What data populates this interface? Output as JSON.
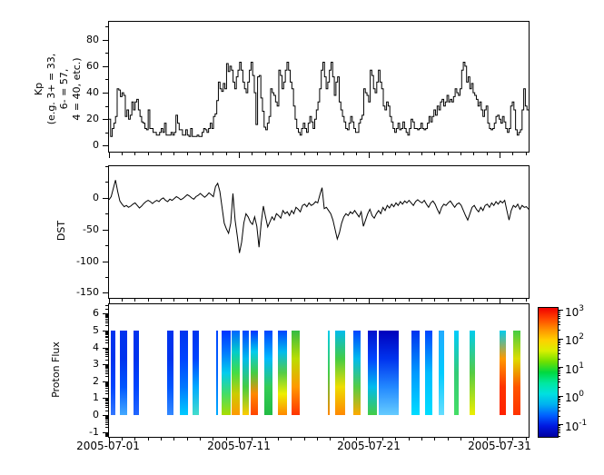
{
  "figure": {
    "background": "#ffffff",
    "line_color": "#000000"
  },
  "x_axis": {
    "tick_labels": [
      "2005-07-01",
      "2005-07-11",
      "2005-07-21",
      "2005-07-31"
    ],
    "tick_days": [
      0,
      10,
      20,
      30
    ],
    "minor_every_days": 1,
    "total_days": 32.2
  },
  "chart_data": [
    {
      "id": "kp",
      "type": "line",
      "line_style": "step",
      "ylabel_lines": [
        "Kp",
        "(e.g. 3+ = 33,",
        "6- = 57,",
        "4 = 40, etc.)"
      ],
      "ylim": [
        -4.5,
        93.5
      ],
      "yticks": [
        0,
        20,
        40,
        60,
        80
      ],
      "yminor_step": 10,
      "values_per_day": 8,
      "values": [
        20,
        7,
        13,
        17,
        22,
        43,
        42,
        37,
        40,
        38,
        22,
        27,
        20,
        23,
        33,
        27,
        33,
        35,
        27,
        22,
        18,
        17,
        13,
        12,
        27,
        13,
        13,
        10,
        10,
        8,
        8,
        10,
        13,
        10,
        17,
        8,
        8,
        8,
        10,
        8,
        10,
        23,
        17,
        12,
        12,
        8,
        8,
        12,
        8,
        7,
        13,
        7,
        7,
        7,
        8,
        7,
        7,
        10,
        13,
        12,
        10,
        13,
        17,
        13,
        22,
        24,
        34,
        48,
        43,
        41,
        47,
        43,
        62,
        56,
        60,
        57,
        48,
        43,
        52,
        57,
        63,
        57,
        48,
        43,
        40,
        48,
        57,
        63,
        53,
        40,
        16,
        52,
        53,
        36,
        26,
        14,
        12,
        17,
        22,
        43,
        40,
        38,
        33,
        30,
        57,
        53,
        43,
        48,
        57,
        63,
        57,
        48,
        43,
        30,
        20,
        13,
        10,
        8,
        13,
        17,
        13,
        10,
        17,
        22,
        18,
        13,
        20,
        27,
        33,
        43,
        57,
        63,
        52,
        43,
        48,
        57,
        63,
        52,
        38,
        48,
        52,
        33,
        27,
        22,
        18,
        13,
        12,
        17,
        22,
        18,
        13,
        10,
        10,
        17,
        20,
        23,
        43,
        40,
        38,
        33,
        57,
        53,
        43,
        40,
        48,
        57,
        48,
        43,
        30,
        27,
        33,
        30,
        22,
        18,
        13,
        10,
        13,
        17,
        12,
        13,
        18,
        13,
        10,
        8,
        13,
        20,
        18,
        13,
        13,
        12,
        13,
        17,
        13,
        12,
        13,
        17,
        22,
        18,
        22,
        27,
        23,
        30,
        27,
        33,
        35,
        30,
        33,
        38,
        33,
        35,
        33,
        37,
        43,
        40,
        38,
        43,
        57,
        63,
        60,
        48,
        52,
        43,
        47,
        40,
        38,
        35,
        30,
        33,
        27,
        22,
        27,
        30,
        17,
        13,
        12,
        13,
        17,
        22,
        23,
        20,
        17,
        22,
        18,
        13,
        10,
        13,
        30,
        33,
        27,
        12,
        8,
        10,
        12,
        27,
        43,
        30,
        27
      ]
    },
    {
      "id": "dst",
      "type": "line",
      "line_style": "linear",
      "ylabel": "DST",
      "ylim": [
        -158,
        50
      ],
      "yticks": [
        0,
        -50,
        -100,
        -150
      ],
      "yminor_step": 25,
      "values_per_day": 6,
      "values": [
        -3,
        2,
        15,
        28,
        10,
        -5,
        -10,
        -14,
        -12,
        -15,
        -13,
        -10,
        -8,
        -12,
        -16,
        -13,
        -9,
        -6,
        -4,
        -6,
        -9,
        -6,
        -4,
        -6,
        -2,
        0,
        -4,
        -6,
        -2,
        -4,
        -1,
        2,
        0,
        -3,
        -1,
        2,
        5,
        3,
        0,
        -2,
        2,
        4,
        7,
        4,
        1,
        4,
        8,
        5,
        2,
        18,
        23,
        10,
        -15,
        -40,
        -49,
        -56,
        -40,
        7,
        -35,
        -60,
        -87,
        -70,
        -40,
        -25,
        -30,
        -38,
        -42,
        -30,
        -45,
        -78,
        -40,
        -13,
        -30,
        -46,
        -38,
        -30,
        -35,
        -25,
        -28,
        -32,
        -20,
        -25,
        -22,
        -28,
        -20,
        -25,
        -15,
        -18,
        -22,
        -12,
        -10,
        -14,
        -8,
        -12,
        -10,
        -6,
        -8,
        5,
        16,
        -17,
        -15,
        -20,
        -25,
        -35,
        -50,
        -65,
        -55,
        -40,
        -30,
        -25,
        -28,
        -22,
        -25,
        -20,
        -25,
        -30,
        -22,
        -45,
        -35,
        -25,
        -18,
        -28,
        -32,
        -25,
        -20,
        -25,
        -15,
        -20,
        -12,
        -16,
        -10,
        -14,
        -8,
        -12,
        -6,
        -10,
        -5,
        -8,
        -4,
        -8,
        -12,
        -6,
        -3,
        -6,
        -8,
        -4,
        -10,
        -15,
        -8,
        -5,
        -10,
        -18,
        -25,
        -15,
        -10,
        -12,
        -8,
        -5,
        -10,
        -15,
        -10,
        -8,
        -12,
        -20,
        -28,
        -35,
        -25,
        -15,
        -12,
        -18,
        -22,
        -15,
        -20,
        -12,
        -10,
        -15,
        -8,
        -12,
        -6,
        -10,
        -5,
        -8,
        -4,
        -20,
        -35,
        -20,
        -12,
        -15,
        -10,
        -18,
        -12,
        -15,
        -14,
        -18
      ]
    },
    {
      "id": "proton",
      "type": "heatmap",
      "ylabel": "Proton Flux",
      "ylim": [
        -1.28,
        6.55
      ],
      "yticks": [
        -1,
        0,
        1,
        2,
        3,
        4,
        5,
        6
      ],
      "yminor_style": "log-decades",
      "stripe_y_range": [
        0,
        5
      ],
      "value_range": [
        "1e-1",
        "1e3"
      ],
      "stripes": [
        {
          "start_day": 0.15,
          "end_day": 0.5,
          "colors": [
            "#0033ee",
            "#0033ee",
            "#0044ff",
            "#3377ff"
          ]
        },
        {
          "start_day": 0.84,
          "end_day": 1.39,
          "colors": [
            "#0033ee",
            "#0033ee",
            "#0055ff",
            "#44aaff"
          ]
        },
        {
          "start_day": 1.88,
          "end_day": 2.3,
          "colors": [
            "#0033ee",
            "#0033ee",
            "#0044ff",
            "#2266ff"
          ]
        },
        {
          "start_day": 4.45,
          "end_day": 4.93,
          "colors": [
            "#0033ee",
            "#0033ee",
            "#0055ff",
            "#3388ff"
          ]
        },
        {
          "start_day": 5.42,
          "end_day": 6.05,
          "colors": [
            "#0033ee",
            "#0044ff",
            "#0077ff",
            "#00ccff"
          ]
        },
        {
          "start_day": 6.4,
          "end_day": 6.88,
          "colors": [
            "#0033ee",
            "#0044ff",
            "#00aaff",
            "#44ddcc"
          ]
        },
        {
          "start_day": 8.2,
          "end_day": 8.34,
          "colors": [
            "#0044ff",
            "#0066ff",
            "#00aaff"
          ]
        },
        {
          "start_day": 8.61,
          "end_day": 9.31,
          "colors": [
            "#0033ff",
            "#0077ff",
            "#00ccee",
            "#44dd66",
            "#aadd00"
          ]
        },
        {
          "start_day": 9.38,
          "end_day": 10.07,
          "colors": [
            "#0066ff",
            "#00cccc",
            "#44dd44",
            "#cccc00",
            "#ff9900"
          ]
        },
        {
          "start_day": 10.21,
          "end_day": 10.76,
          "colors": [
            "#0044ff",
            "#00bbee",
            "#44cc44",
            "#ffcc00"
          ]
        },
        {
          "start_day": 10.9,
          "end_day": 11.46,
          "colors": [
            "#0033ff",
            "#00ccee",
            "#44cc44",
            "#ff8800",
            "#ff4400"
          ]
        },
        {
          "start_day": 11.94,
          "end_day": 12.57,
          "colors": [
            "#0044ff",
            "#00bbff",
            "#33cc55",
            "#22bb44"
          ]
        },
        {
          "start_day": 12.99,
          "end_day": 13.68,
          "colors": [
            "#0044ff",
            "#00bbee",
            "#55cc44",
            "#eeee00",
            "#ff8800"
          ]
        },
        {
          "start_day": 14.03,
          "end_day": 14.65,
          "colors": [
            "#33bb44",
            "#bbdd00",
            "#ff9900",
            "#ff3300"
          ]
        },
        {
          "start_day": 16.81,
          "end_day": 16.95,
          "colors": [
            "#00ccee",
            "#44cc44",
            "#ff8800"
          ]
        },
        {
          "start_day": 17.36,
          "end_day": 18.13,
          "colors": [
            "#00bbee",
            "#44cc44",
            "#eedd00",
            "#ff8800"
          ]
        },
        {
          "start_day": 18.75,
          "end_day": 19.31,
          "colors": [
            "#0044ff",
            "#00bbee",
            "#55cc44",
            "#ffaa00"
          ]
        },
        {
          "start_day": 19.86,
          "end_day": 20.56,
          "colors": [
            "#0011cc",
            "#0044ff",
            "#00bbee",
            "#44cc44"
          ]
        },
        {
          "start_day": 20.69,
          "end_day": 22.22,
          "colors": [
            "#0000bb",
            "#0033ee",
            "#2288ff",
            "#66ccff"
          ]
        },
        {
          "start_day": 23.19,
          "end_day": 23.82,
          "colors": [
            "#0033ee",
            "#0099ff",
            "#00ddff"
          ]
        },
        {
          "start_day": 24.24,
          "end_day": 24.79,
          "colors": [
            "#0044ff",
            "#00bbff",
            "#00ddff"
          ]
        },
        {
          "start_day": 25.28,
          "end_day": 25.69,
          "colors": [
            "#22aaff",
            "#00ccff",
            "#66ddff"
          ]
        },
        {
          "start_day": 26.46,
          "end_day": 26.81,
          "colors": [
            "#00ccff",
            "#33cc77",
            "#44dd66"
          ]
        },
        {
          "start_day": 27.64,
          "end_day": 28.06,
          "colors": [
            "#00ccee",
            "#55cc44",
            "#eeee00"
          ]
        },
        {
          "start_day": 30.0,
          "end_day": 30.49,
          "colors": [
            "#00ccee",
            "#ff9900",
            "#ff3300",
            "#ff2200"
          ]
        },
        {
          "start_day": 31.04,
          "end_day": 31.6,
          "colors": [
            "#44cc44",
            "#dddd00",
            "#ff5500",
            "#ff3300"
          ]
        }
      ]
    }
  ],
  "colorbar": {
    "scale": "log",
    "ticks": [
      {
        "base": "10",
        "exp": "3"
      },
      {
        "base": "10",
        "exp": "2"
      },
      {
        "base": "10",
        "exp": "1"
      },
      {
        "base": "10",
        "exp": "0"
      },
      {
        "base": "10",
        "exp": "-1"
      }
    ],
    "gradient_top_to_bottom": [
      "#f00000",
      "#ff4500",
      "#ff9000",
      "#ffd000",
      "#d8f000",
      "#70e000",
      "#00d840",
      "#00e8a0",
      "#00e0e0",
      "#00b0f0",
      "#0060ff",
      "#0018e0",
      "#0000a0"
    ]
  }
}
